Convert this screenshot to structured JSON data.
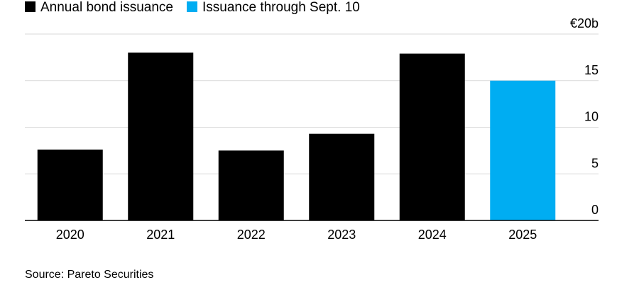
{
  "chart_data": {
    "type": "bar",
    "categories": [
      "2020",
      "2021",
      "2022",
      "2023",
      "2024",
      "2025"
    ],
    "values": [
      7.6,
      18.0,
      7.5,
      9.3,
      17.9,
      15.0
    ],
    "bar_series": [
      "annual",
      "annual",
      "annual",
      "annual",
      "annual",
      "through"
    ],
    "series": [
      {
        "key": "annual",
        "name": "Annual bond issuance",
        "color": "#000000"
      },
      {
        "key": "through",
        "name": "Issuance through Sept. 10",
        "color": "#00adf2"
      }
    ],
    "yticks": [
      {
        "value": 20,
        "label": "€20b"
      },
      {
        "value": 15,
        "label": "15"
      },
      {
        "value": 10,
        "label": "10"
      },
      {
        "value": 5,
        "label": "5"
      },
      {
        "value": 0,
        "label": "0"
      }
    ],
    "ylim": [
      0,
      20
    ],
    "grid": true,
    "legend_position": "top-left",
    "source": "Source: Pareto Securities",
    "colors": {
      "grid": "#d9d9d9",
      "baseline": "#000000"
    }
  }
}
